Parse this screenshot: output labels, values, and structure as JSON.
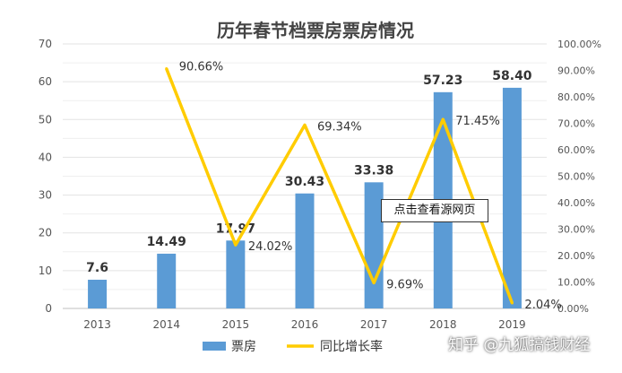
{
  "chart_data": {
    "type": "bar+line",
    "title": "历年春节档票房票房情况",
    "categories": [
      "2013",
      "2014",
      "2015",
      "2016",
      "2017",
      "2018",
      "2019"
    ],
    "series": [
      {
        "name": "票房",
        "type": "bar",
        "axis": "left",
        "values": [
          7.6,
          14.49,
          17.97,
          30.43,
          33.38,
          57.23,
          58.4
        ],
        "labels": [
          "7.6",
          "14.49",
          "17.97",
          "30.43",
          "33.38",
          "57.23",
          "58.40"
        ],
        "color": "#5b9bd5"
      },
      {
        "name": "同比增长率",
        "type": "line",
        "axis": "right",
        "points": [
          {
            "x": "2014",
            "y": 90.66
          },
          {
            "x": "2015",
            "y": 24.02
          },
          {
            "x": "2016",
            "y": 69.34
          },
          {
            "x": "2017",
            "y": 9.69
          },
          {
            "x": "2018",
            "y": 71.45
          },
          {
            "x": "2019",
            "y": 2.04
          }
        ],
        "labels": [
          "90.66%",
          "24.02%",
          "69.34%",
          "9.69%",
          "71.45%",
          "2.04%"
        ],
        "color": "#ffcc00"
      }
    ],
    "y_left": {
      "min": 0,
      "max": 70,
      "ticks": [
        "0",
        "10",
        "20",
        "30",
        "40",
        "50",
        "60",
        "70"
      ]
    },
    "y_right": {
      "min": 0,
      "max": 100,
      "ticks": [
        "0.00%",
        "10.00%",
        "20.00%",
        "30.00%",
        "40.00%",
        "50.00%",
        "60.00%",
        "70.00%",
        "80.00%",
        "90.00%",
        "100.00%"
      ]
    },
    "grid": true,
    "legend_position": "bottom",
    "legend": [
      "票房",
      "同比增长率"
    ]
  },
  "overlay": {
    "tooltip_text": "点击查看源网页",
    "watermark": "知乎 @九狐搞钱财经"
  }
}
